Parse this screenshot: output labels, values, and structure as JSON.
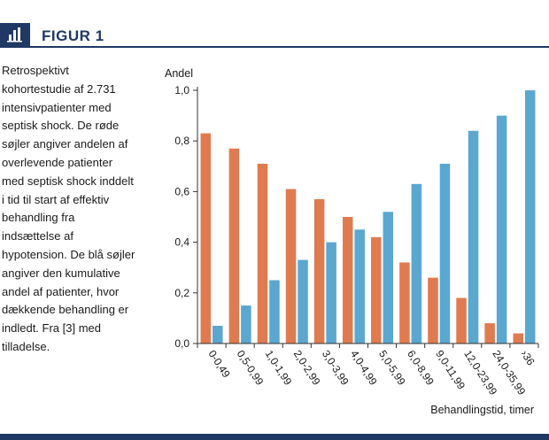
{
  "header": {
    "figure_label": "FIGUR 1",
    "icon": "bar-chart-icon",
    "accent_color": "#1f3864"
  },
  "caption": "Retrospektivt kohortestudie af 2.731 intensivpatienter med septisk shock. De røde søjler angiver andelen af overlevende patienter med septisk shock inddelt i tid til start af effektiv behandling fra indsættelse af hypotension. De blå søjler angiver den kumulative andel af patienter, hvor dækkende behandling er indledt. Fra [3] med tilladelse.",
  "chart_data": {
    "type": "bar",
    "ylabel": "Andel",
    "xlabel": "Behandlingstid, timer",
    "ylim": [
      0,
      1.0
    ],
    "y_ticks": [
      "0,0",
      "0,2",
      "0,4",
      "0,6",
      "0,8",
      "1,0"
    ],
    "y_tick_values": [
      0,
      0.2,
      0.4,
      0.6,
      0.8,
      1.0
    ],
    "grid": false,
    "legend": "none",
    "categories": [
      "0-0,49",
      "0,5-0,99",
      "1,0-1,99",
      "2,0-2,99",
      "3,0-3,99",
      "4,0-4,99",
      "5,0-5,99",
      "6,0-8,99",
      "9,0-11,99",
      "12,0-23,99",
      "24,0-35,99",
      "›36"
    ],
    "series": [
      {
        "color": "#e07b4f",
        "values": [
          0.83,
          0.77,
          0.71,
          0.61,
          0.57,
          0.5,
          0.42,
          0.32,
          0.26,
          0.18,
          0.08,
          0.04
        ]
      },
      {
        "color": "#5aa7cf",
        "values": [
          0.07,
          0.15,
          0.25,
          0.33,
          0.4,
          0.45,
          0.52,
          0.63,
          0.71,
          0.84,
          0.9,
          1.0
        ]
      }
    ]
  }
}
